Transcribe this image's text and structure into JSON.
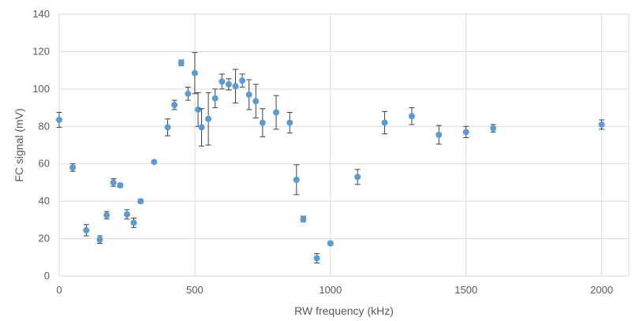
{
  "chart_data": {
    "type": "scatter",
    "title": "",
    "xlabel": "RW frequency (kHz)",
    "ylabel": "FC signal (mV)",
    "xlim": [
      0,
      2100
    ],
    "ylim": [
      0,
      140
    ],
    "xticks": [
      0,
      500,
      1000,
      1500,
      2000
    ],
    "yticks": [
      0,
      20,
      40,
      60,
      80,
      100,
      120,
      140
    ],
    "grid": true,
    "legend": "none",
    "marker_color": "#5B9BD5",
    "errorbar_color": "#404040",
    "series": [
      {
        "name": "FC signal",
        "points": [
          {
            "x": 0,
            "y": 83.5,
            "err": 4
          },
          {
            "x": 50,
            "y": 58,
            "err": 2
          },
          {
            "x": 100,
            "y": 24.5,
            "err": 3
          },
          {
            "x": 150,
            "y": 19.5,
            "err": 2
          },
          {
            "x": 175,
            "y": 32.5,
            "err": 2
          },
          {
            "x": 200,
            "y": 50,
            "err": 2
          },
          {
            "x": 225,
            "y": 48.5,
            "err": 1
          },
          {
            "x": 250,
            "y": 33,
            "err": 2.5
          },
          {
            "x": 275,
            "y": 28.5,
            "err": 2.5
          },
          {
            "x": 300,
            "y": 40,
            "err": 1
          },
          {
            "x": 350,
            "y": 61,
            "err": 0.5
          },
          {
            "x": 400,
            "y": 79.5,
            "err": 4.5
          },
          {
            "x": 425,
            "y": 91.5,
            "err": 2.5
          },
          {
            "x": 450,
            "y": 114,
            "err": 1.5
          },
          {
            "x": 475,
            "y": 97.5,
            "err": 3.5
          },
          {
            "x": 500,
            "y": 108.5,
            "err": 11
          },
          {
            "x": 512,
            "y": 89,
            "err": 9
          },
          {
            "x": 525,
            "y": 79.5,
            "err": 10
          },
          {
            "x": 550,
            "y": 84,
            "err": 14
          },
          {
            "x": 575,
            "y": 95,
            "err": 5
          },
          {
            "x": 600,
            "y": 104,
            "err": 4
          },
          {
            "x": 625,
            "y": 102.5,
            "err": 3
          },
          {
            "x": 650,
            "y": 101.5,
            "err": 9
          },
          {
            "x": 675,
            "y": 104.5,
            "err": 3.5
          },
          {
            "x": 700,
            "y": 97,
            "err": 8
          },
          {
            "x": 725,
            "y": 93.5,
            "err": 9
          },
          {
            "x": 750,
            "y": 82,
            "err": 7.5
          },
          {
            "x": 800,
            "y": 87.5,
            "err": 9
          },
          {
            "x": 850,
            "y": 82,
            "err": 5.5
          },
          {
            "x": 875,
            "y": 51.5,
            "err": 8
          },
          {
            "x": 900,
            "y": 30.5,
            "err": 1.5
          },
          {
            "x": 950,
            "y": 9.5,
            "err": 2.5
          },
          {
            "x": 1000,
            "y": 17.5,
            "err": 1
          },
          {
            "x": 1100,
            "y": 53,
            "err": 4
          },
          {
            "x": 1200,
            "y": 82,
            "err": 6
          },
          {
            "x": 1300,
            "y": 85.5,
            "err": 4.5
          },
          {
            "x": 1400,
            "y": 75.5,
            "err": 5
          },
          {
            "x": 1500,
            "y": 77,
            "err": 3
          },
          {
            "x": 1600,
            "y": 79,
            "err": 2
          },
          {
            "x": 2000,
            "y": 81,
            "err": 2.5
          }
        ]
      }
    ]
  }
}
